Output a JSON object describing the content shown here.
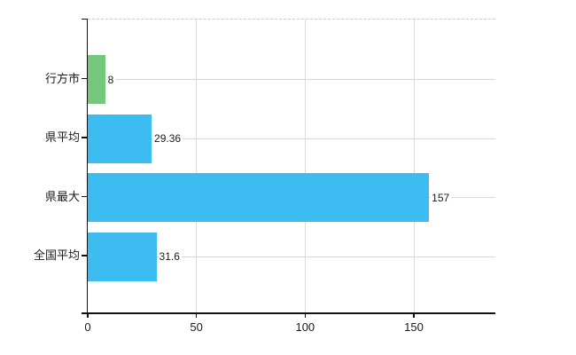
{
  "chart_data": {
    "type": "bar",
    "orientation": "horizontal",
    "title": "",
    "xlabel": "",
    "ylabel": "",
    "categories": [
      "行方市",
      "県平均",
      "県最大",
      "全国平均"
    ],
    "values": [
      8,
      29.36,
      157,
      31.6
    ],
    "value_labels": [
      "8",
      "29.36",
      "157",
      "31.6"
    ],
    "bar_colors": [
      "#76c77e",
      "#3cbcf0",
      "#3cbcf0",
      "#3cbcf0"
    ],
    "x_ticks": [
      0,
      50,
      100,
      150
    ],
    "x_tick_labels": [
      "0",
      "50",
      "100",
      "150"
    ],
    "xlim": [
      0,
      187.5
    ],
    "grid": true,
    "legend": false,
    "colors": {
      "highlight_bar": "#76c77e",
      "default_bar": "#3cbcf0",
      "axis": "#111111",
      "h_gridline": "#d5dbd3",
      "v_gridline": "#dcdcdc",
      "plot_top_border": "#c9c9d1",
      "background": "#ffffff",
      "text": "#1a1a1a"
    }
  }
}
